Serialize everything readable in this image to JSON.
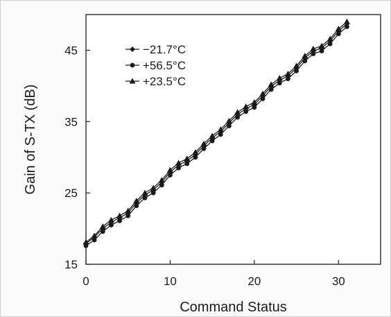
{
  "chart_data": {
    "type": "line",
    "xlabel": "Command Status",
    "ylabel": "Gain of S-TX (dB)",
    "xlim": [
      0,
      35
    ],
    "ylim": [
      15,
      50
    ],
    "x_ticks": [
      0,
      10,
      20,
      30
    ],
    "y_ticks": [
      15,
      25,
      35,
      45
    ],
    "legend_position": "top-left",
    "grid": false,
    "x": [
      0,
      1,
      2,
      3,
      4,
      5,
      6,
      7,
      8,
      9,
      10,
      11,
      12,
      13,
      14,
      15,
      16,
      17,
      18,
      19,
      20,
      21,
      22,
      23,
      24,
      25,
      26,
      27,
      28,
      29,
      30,
      31
    ],
    "series": [
      {
        "name": "−21.7°C",
        "marker": "diamond",
        "values": [
          17.9,
          18.8,
          20.0,
          20.9,
          21.5,
          22.2,
          23.6,
          24.7,
          25.4,
          26.5,
          27.9,
          28.9,
          29.5,
          30.4,
          31.6,
          32.7,
          33.6,
          34.8,
          36.0,
          36.8,
          37.4,
          38.6,
          39.9,
          40.8,
          41.4,
          42.5,
          43.9,
          44.9,
          45.3,
          46.3,
          47.7,
          48.7
        ]
      },
      {
        "name": "+56.5°C",
        "marker": "circle",
        "values": [
          17.6,
          18.4,
          19.6,
          20.5,
          21.1,
          21.8,
          23.2,
          24.3,
          25.0,
          26.1,
          27.5,
          28.5,
          29.1,
          30.0,
          31.2,
          32.3,
          33.2,
          34.4,
          35.6,
          36.4,
          37.0,
          38.2,
          39.5,
          40.4,
          41.0,
          42.1,
          43.5,
          44.5,
          44.9,
          45.9,
          47.3,
          48.3
        ]
      },
      {
        "name": "+23.5°C",
        "marker": "triangle",
        "values": [
          18.1,
          19.0,
          20.3,
          21.2,
          21.8,
          22.5,
          23.9,
          25.0,
          25.7,
          26.8,
          28.2,
          29.2,
          29.8,
          30.7,
          31.9,
          33.0,
          33.9,
          35.1,
          36.3,
          37.1,
          37.7,
          38.9,
          40.2,
          41.1,
          41.7,
          42.8,
          44.2,
          45.2,
          45.6,
          46.6,
          48.0,
          49.0
        ]
      }
    ],
    "colors": {
      "line": "#1a1a1a",
      "axis": "#1a1a1a"
    }
  }
}
